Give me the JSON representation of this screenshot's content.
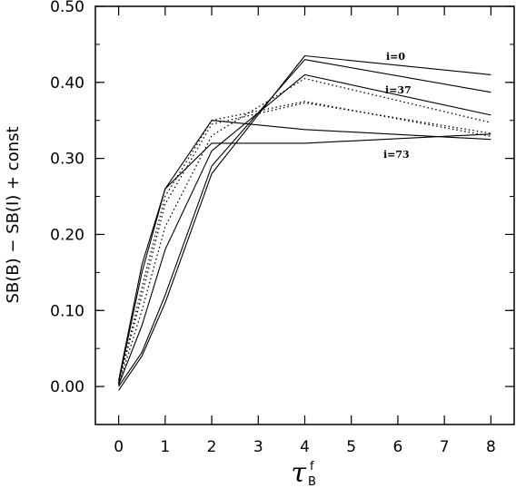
{
  "chart_data": {
    "type": "line",
    "title": "",
    "ylabel": "SB(B) − SB(I) + const",
    "xlabel": {
      "main": "τ",
      "sub": "B",
      "sup": "f"
    },
    "ylim": [
      -0.05,
      0.5
    ],
    "xlim": [
      -0.5,
      8.5
    ],
    "x": [
      0,
      0.5,
      1,
      2,
      4,
      8
    ],
    "xticks": [
      {
        "label": "0",
        "value": 0
      },
      {
        "label": "1",
        "value": 1
      },
      {
        "label": "2",
        "value": 2
      },
      {
        "label": "3",
        "value": 3
      },
      {
        "label": "4",
        "value": 4
      },
      {
        "label": "5",
        "value": 5
      },
      {
        "label": "6",
        "value": 6
      },
      {
        "label": "7",
        "value": 7
      },
      {
        "label": "8",
        "value": 8
      }
    ],
    "yticks": [
      {
        "label": "0.00",
        "value": 0.0
      },
      {
        "label": "0.10",
        "value": 0.1
      },
      {
        "label": "0.20",
        "value": 0.2
      },
      {
        "label": "0.30",
        "value": 0.3
      },
      {
        "label": "0.40",
        "value": 0.4
      },
      {
        "label": "0.50",
        "value": 0.5
      }
    ],
    "series": [
      {
        "name": "i=0",
        "style": "solid",
        "values": [
          -0.005,
          0.04,
          0.11,
          0.28,
          0.435,
          0.41
        ]
      },
      {
        "style": "solid",
        "values": [
          0.0,
          0.045,
          0.12,
          0.29,
          0.43,
          0.387
        ]
      },
      {
        "name": "i=37",
        "style": "solid",
        "values": [
          0.002,
          0.08,
          0.18,
          0.31,
          0.41,
          0.357
        ]
      },
      {
        "style": "dotted",
        "values": [
          0.002,
          0.1,
          0.21,
          0.33,
          0.405,
          0.347
        ]
      },
      {
        "style": "dotted",
        "values": [
          0.004,
          0.12,
          0.24,
          0.345,
          0.373,
          0.333
        ]
      },
      {
        "style": "dotted",
        "values": [
          0.004,
          0.13,
          0.25,
          0.35,
          0.375,
          0.329
        ]
      },
      {
        "name": "i=73",
        "style": "solid",
        "values": [
          0.005,
          0.15,
          0.26,
          0.32,
          0.32,
          0.332
        ]
      },
      {
        "style": "solid",
        "values": [
          0.008,
          0.16,
          0.26,
          0.35,
          0.338,
          0.325
        ]
      }
    ],
    "annotations": [
      "i=0",
      "i=37",
      "i=73"
    ]
  }
}
